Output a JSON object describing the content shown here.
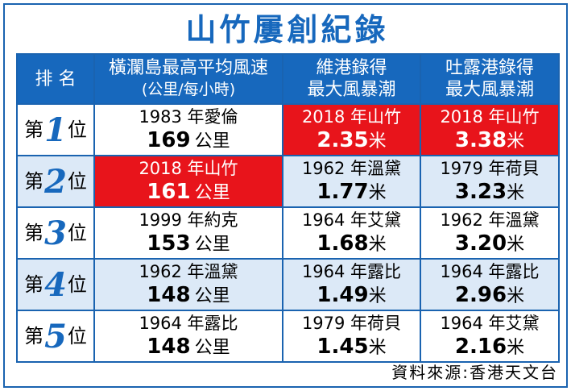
{
  "title": "山竹屢創紀錄",
  "headers": {
    "rank": "排 名",
    "wind_line1": "橫瀾島最高平均風速",
    "wind_line2": "(公里/每小時)",
    "victoria_line1": "維港錄得",
    "victoria_line2": "最大風暴潮",
    "tolo_line1": "吐露港錄得",
    "tolo_line2": "最大風暴潮"
  },
  "rows": [
    {
      "rank_prefix": "第",
      "rank_num": "1",
      "rank_suffix": "位",
      "wind": {
        "event": "1983 年愛倫",
        "value": "169",
        "unit": "公里"
      },
      "victoria": {
        "event": "2018 年山竹",
        "value": "2.35",
        "unit": "米"
      },
      "tolo": {
        "event": "2018 年山竹",
        "value": "3.38",
        "unit": "米"
      }
    },
    {
      "rank_prefix": "第",
      "rank_num": "2",
      "rank_suffix": "位",
      "wind": {
        "event": "2018 年山竹",
        "value": "161",
        "unit": "公里"
      },
      "victoria": {
        "event": "1962 年溫黛",
        "value": "1.77",
        "unit": "米"
      },
      "tolo": {
        "event": "1979 年荷貝",
        "value": "3.23",
        "unit": "米"
      }
    },
    {
      "rank_prefix": "第",
      "rank_num": "3",
      "rank_suffix": "位",
      "wind": {
        "event": "1999 年約克",
        "value": "153",
        "unit": "公里"
      },
      "victoria": {
        "event": "1964 年艾黛",
        "value": "1.68",
        "unit": "米"
      },
      "tolo": {
        "event": "1962 年溫黛",
        "value": "3.20",
        "unit": "米"
      }
    },
    {
      "rank_prefix": "第",
      "rank_num": "4",
      "rank_suffix": "位",
      "wind": {
        "event": "1962 年溫黛",
        "value": "148",
        "unit": "公里"
      },
      "victoria": {
        "event": "1964 年露比",
        "value": "1.49",
        "unit": "米"
      },
      "tolo": {
        "event": "1964 年露比",
        "value": "2.96",
        "unit": "米"
      }
    },
    {
      "rank_prefix": "第",
      "rank_num": "5",
      "rank_suffix": "位",
      "wind": {
        "event": "1964 年露比",
        "value": "148",
        "unit": "公里"
      },
      "victoria": {
        "event": "1979 年荷貝",
        "value": "1.45",
        "unit": "米"
      },
      "tolo": {
        "event": "1964 年艾黛",
        "value": "2.16",
        "unit": "米"
      }
    }
  ],
  "highlight_color": "#e8141b",
  "accent_color": "#1768bd",
  "source": "資料來源:香港天文台"
}
